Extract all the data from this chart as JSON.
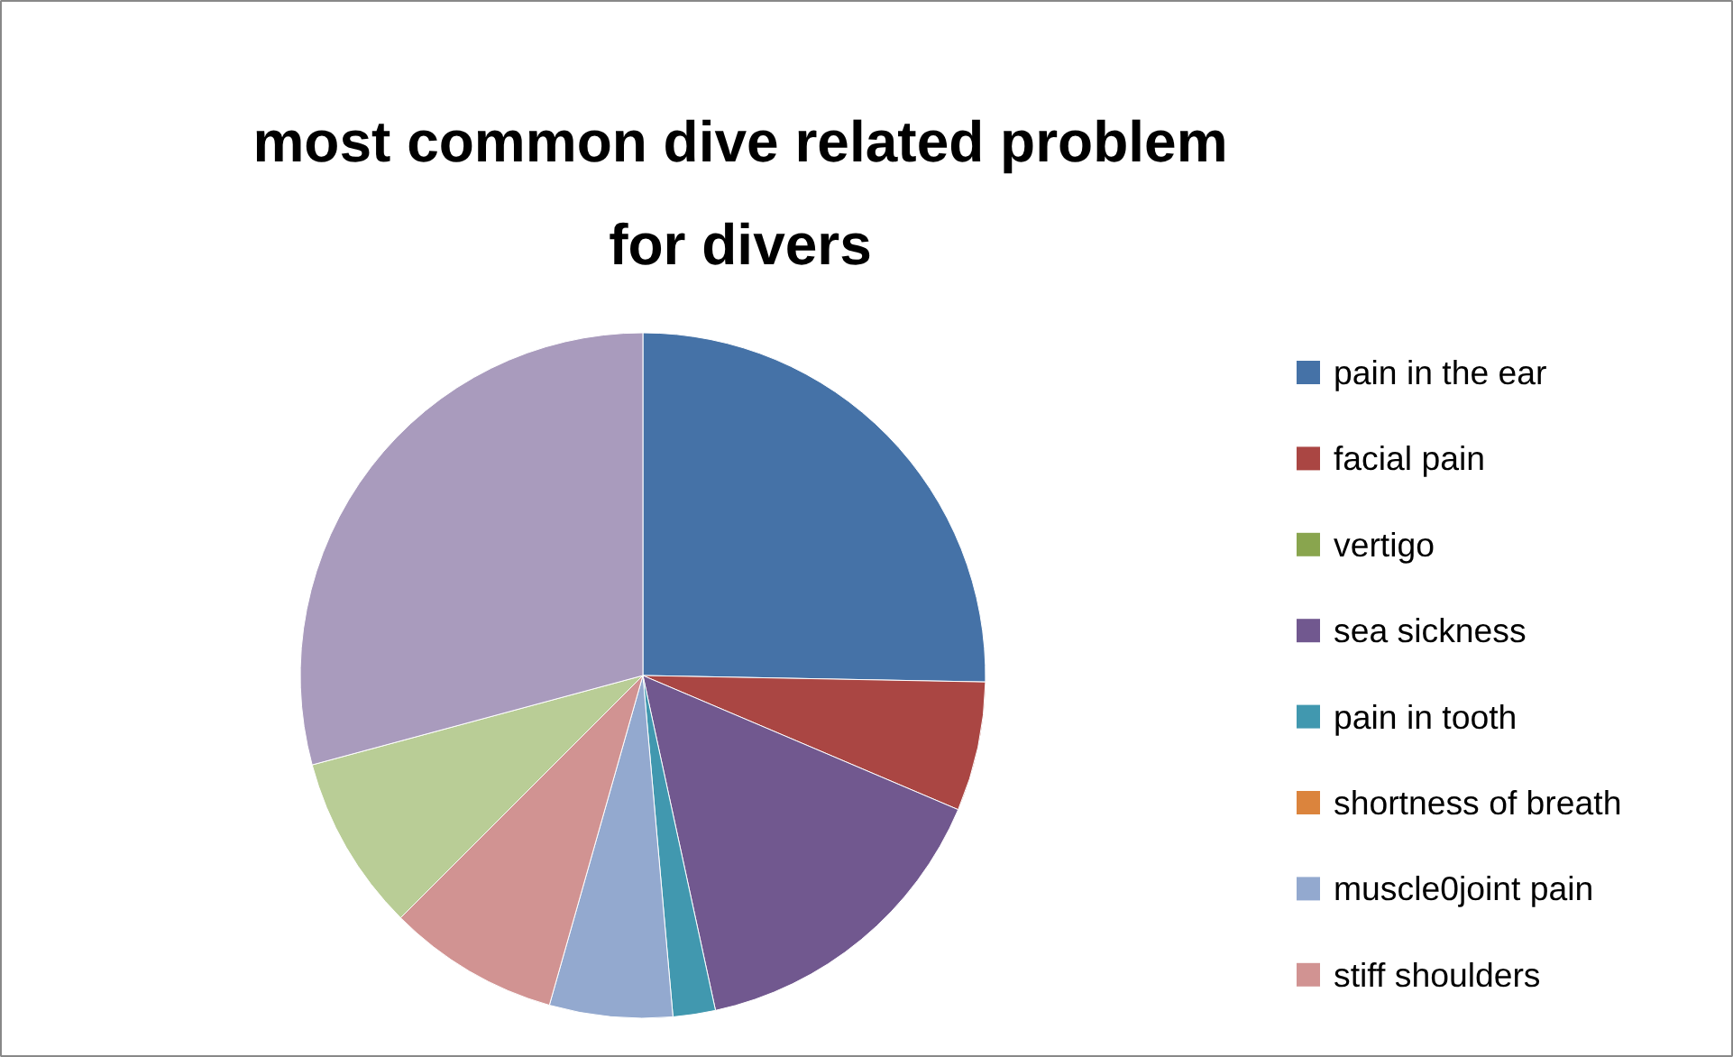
{
  "chart_data": {
    "type": "pie",
    "title": "most common dive related problem for divers",
    "categories": [
      "pain in the ear",
      "facial pain",
      "vertigo",
      "sea sickness",
      "pain in tooth",
      "shortness of breath",
      "muscle0joint pain",
      "stiff shoulders",
      null,
      null
    ],
    "values": [
      25.3,
      6.1,
      0,
      15.2,
      2.0,
      0,
      5.8,
      8.1,
      8.3,
      29.2
    ],
    "colors": [
      "#4572a7",
      "#aa4643",
      "#89a54e",
      "#71588f",
      "#4198af",
      "#db843d",
      "#93a9cf",
      "#d19392",
      "#b9cd96",
      "#a99bbd"
    ],
    "legend": "right"
  }
}
